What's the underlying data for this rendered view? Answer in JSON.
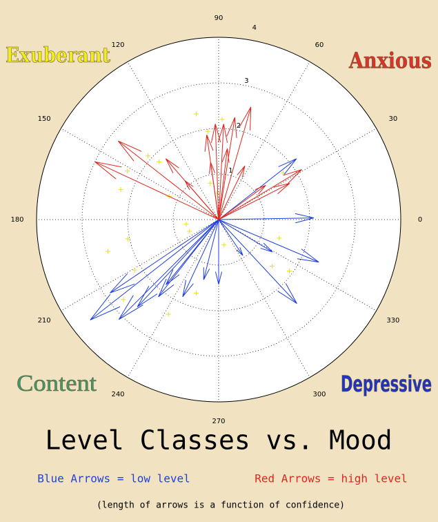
{
  "chart_data": {
    "type": "compass",
    "title": "Level Classes vs. Mood",
    "note": "(length of arrows is a function of confidence)",
    "rlim": [
      0,
      4
    ],
    "rticks": [
      1,
      2,
      3,
      4
    ],
    "thetaticks": [
      0,
      30,
      60,
      90,
      120,
      150,
      180,
      210,
      240,
      270,
      300,
      330
    ],
    "grid": true,
    "annotations": [
      {
        "text": "Exuberant",
        "color": "#f2ec1a"
      },
      {
        "text": "Anxious",
        "color": "#d8342c"
      },
      {
        "text": "Content",
        "color": "#3a9a72"
      },
      {
        "text": "Depressive",
        "color": "#1f34c0"
      }
    ],
    "series": [
      {
        "name": "Blue Arrows = low level",
        "color": "#1f3fe0",
        "angles": [
          1,
          38,
          337,
          313,
          329,
          304,
          270,
          256,
          218,
          225,
          227,
          232,
          245,
          214,
          231
        ],
        "values": [
          2.09,
          2.17,
          2.39,
          2.52,
          1.38,
          0.95,
          1.42,
          1.36,
          3.58,
          3.1,
          2.62,
          2.15,
          1.87,
          2.88,
          1.84
        ]
      },
      {
        "name": "Red Arrows = high level",
        "color": "#e0261e",
        "angles": [
          155,
          142,
          131,
          131,
          98,
          92,
          87,
          81,
          74,
          83,
          31,
          27,
          36,
          64,
          98
        ],
        "values": [
          3.0,
          2.8,
          1.77,
          1.13,
          1.88,
          2.1,
          2.1,
          2.27,
          2.57,
          1.57,
          2.13,
          1.75,
          1.28,
          1.31,
          1.27
        ]
      }
    ],
    "points": {
      "color": "#e6e020",
      "angles": [
        102,
        88,
        97,
        138,
        152,
        163,
        136,
        155,
        188,
        202,
        192,
        196,
        211,
        220,
        242,
        253,
        282,
        319,
        324,
        343,
        36,
        103,
        93
      ],
      "values": [
        2.37,
        2.2,
        1.95,
        2.09,
        2.27,
        2.25,
        1.82,
        1.2,
        0.72,
        0.69,
        2.04,
        2.53,
        2.15,
        2.73,
        2.35,
        1.69,
        0.57,
        1.56,
        1.92,
        1.39,
        1.75,
        0.82,
        0.58
      ]
    }
  }
}
